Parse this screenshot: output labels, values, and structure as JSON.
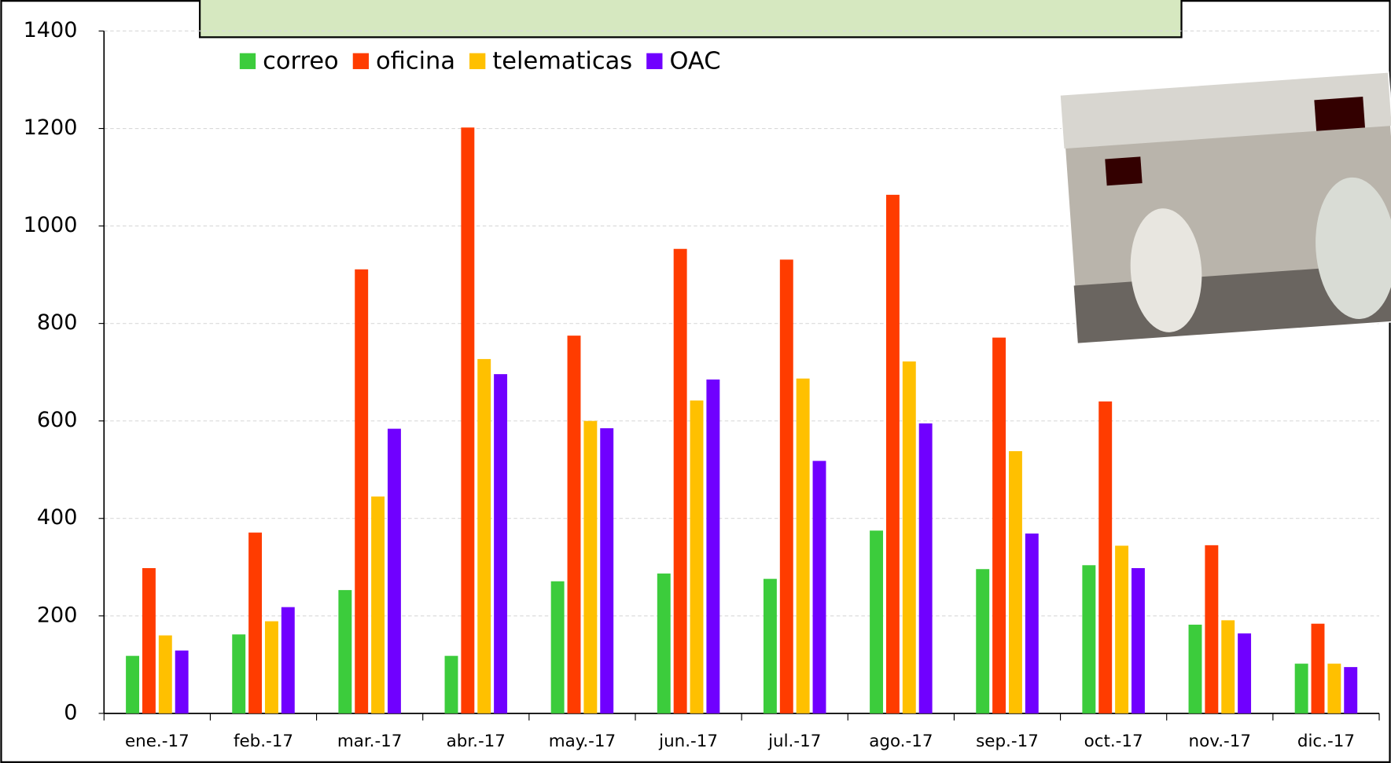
{
  "chart_data": {
    "type": "bar",
    "categories": [
      "ene.-17",
      "feb.-17",
      "mar.-17",
      "abr.-17",
      "may.-17",
      "jun.-17",
      "jul.-17",
      "ago.-17",
      "sep.-17",
      "oct.-17",
      "nov.-17",
      "dic.-17"
    ],
    "series": [
      {
        "name": "correo",
        "color": "#3ccc3c",
        "values": [
          118,
          162,
          253,
          118,
          271,
          287,
          276,
          375,
          296,
          304,
          182,
          102
        ]
      },
      {
        "name": "oficina",
        "color": "#ff3c00",
        "values": [
          298,
          371,
          911,
          1202,
          775,
          953,
          931,
          1064,
          771,
          640,
          345,
          184
        ]
      },
      {
        "name": "telematicas",
        "color": "#ffc000",
        "values": [
          160,
          189,
          445,
          727,
          600,
          642,
          687,
          722,
          538,
          344,
          191,
          102
        ]
      },
      {
        "name": "OAC",
        "color": "#7000ff",
        "values": [
          129,
          218,
          584,
          696,
          585,
          685,
          518,
          595,
          369,
          298,
          164,
          95
        ]
      }
    ],
    "ylim": [
      0,
      1400
    ],
    "yticks": [
      0,
      200,
      400,
      600,
      800,
      1000,
      1200,
      1400
    ],
    "grid": true
  }
}
